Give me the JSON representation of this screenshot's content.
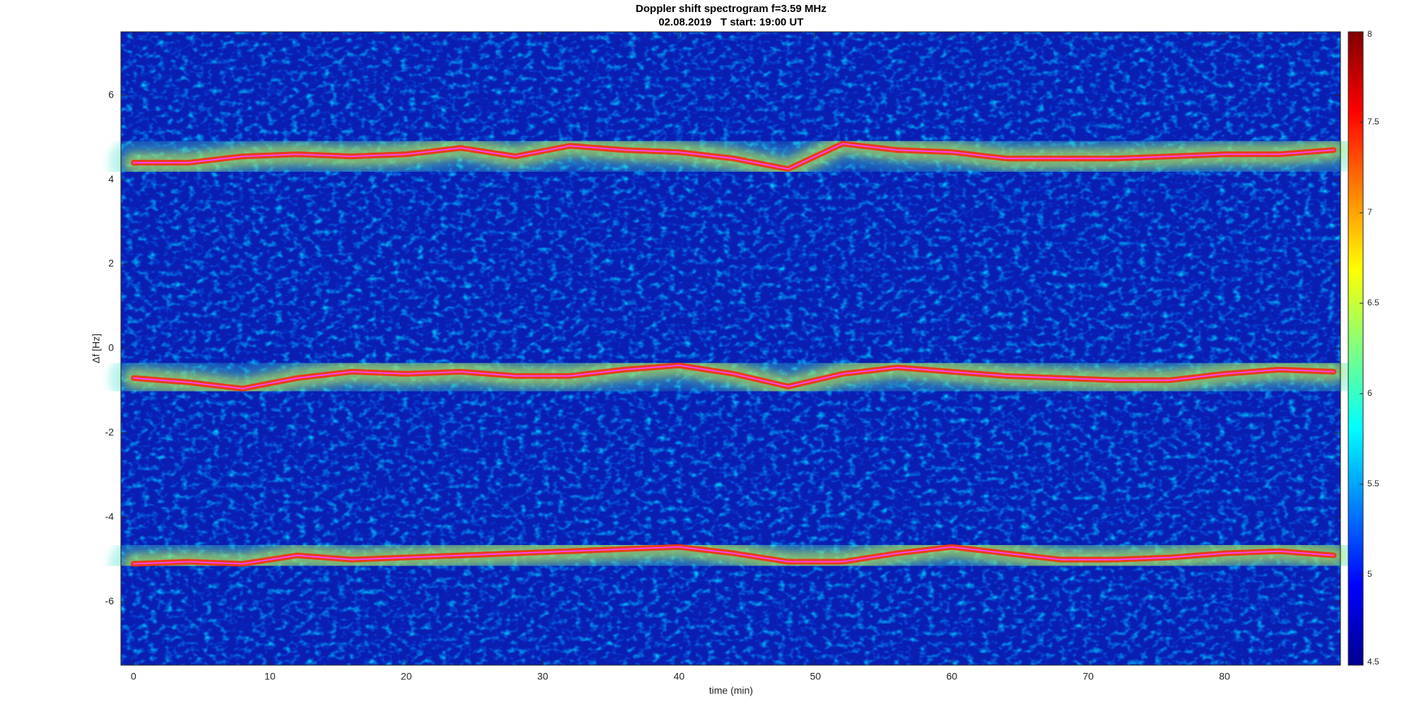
{
  "chart_data": {
    "type": "spectrogram",
    "title": "Doppler shift spectrogram f=3.59 MHz",
    "subtitle": "02.08.2019   T start: 19:00 UT",
    "xlabel": "time (min)",
    "ylabel": "Δf [Hz]",
    "x": [
      0,
      4,
      8,
      12,
      16,
      20,
      24,
      28,
      32,
      36,
      40,
      44,
      48,
      52,
      56,
      60,
      64,
      68,
      72,
      76,
      80,
      84,
      88
    ],
    "series": [
      {
        "color": "#ff40ff",
        "values": [
          4.4,
          4.4,
          4.55,
          4.6,
          4.55,
          4.6,
          4.75,
          4.55,
          4.8,
          4.7,
          4.65,
          4.5,
          4.25,
          4.85,
          4.7,
          4.65,
          4.5,
          4.5,
          4.5,
          4.55,
          4.6,
          4.6,
          4.7
        ]
      },
      {
        "color": "#ff40ff",
        "values": [
          -0.7,
          -0.8,
          -0.95,
          -0.7,
          -0.55,
          -0.6,
          -0.55,
          -0.65,
          -0.65,
          -0.5,
          -0.4,
          -0.6,
          -0.9,
          -0.6,
          -0.45,
          -0.55,
          -0.65,
          -0.7,
          -0.75,
          -0.75,
          -0.6,
          -0.5,
          -0.55
        ]
      },
      {
        "color": "#ff40ff",
        "values": [
          -5.1,
          -5.05,
          -5.1,
          -4.9,
          -5.0,
          -4.95,
          -4.9,
          -4.85,
          -4.8,
          -4.75,
          -4.7,
          -4.85,
          -5.05,
          -5.05,
          -4.85,
          -4.7,
          -4.85,
          -5.0,
          -5.0,
          -4.95,
          -4.85,
          -4.8,
          -4.9
        ]
      }
    ],
    "xlim": [
      -0.93,
      88.5
    ],
    "xticks": [
      0,
      10,
      20,
      30,
      40,
      50,
      60,
      70,
      80
    ],
    "ylim": [
      -7.5,
      7.5
    ],
    "yticks": [
      -6,
      -4,
      -2,
      0,
      2,
      4,
      6
    ],
    "colormap": "jet",
    "clim": [
      4.5,
      8
    ],
    "cticks": [
      4.5,
      5,
      5.5,
      6,
      6.5,
      7,
      7.5,
      8
    ]
  }
}
